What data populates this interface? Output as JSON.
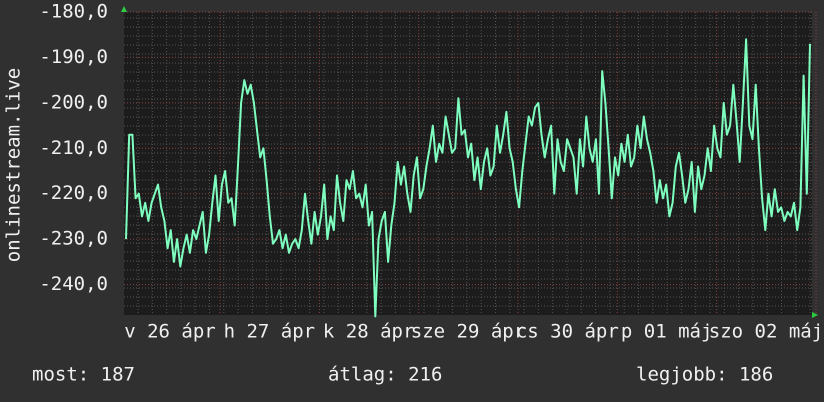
{
  "chart_data": {
    "type": "line",
    "y_label": "onlinestream.live",
    "x_labels": [
      "v 26 ápr",
      "h 27 ápr",
      "k 28 ápr",
      "sze 29 ápr",
      "cs 30 ápr",
      "p 01 máj",
      "szo 02 máj"
    ],
    "ylim": [
      -246.7,
      -180
    ],
    "yticks": [
      {
        "value": -180,
        "label": "-180,0"
      },
      {
        "value": -190,
        "label": "-190,0"
      },
      {
        "value": -200,
        "label": "-200,0"
      },
      {
        "value": -210,
        "label": "-210,0"
      },
      {
        "value": -220,
        "label": "-220,0"
      },
      {
        "value": -230,
        "label": "-230,0"
      },
      {
        "value": -240,
        "label": "-240,0"
      }
    ],
    "grid": true,
    "series": [
      {
        "color": "#7fffbf",
        "values": [
          -230,
          -207,
          -207,
          -221,
          -220,
          -225,
          -222,
          -226,
          -222,
          -220,
          -218,
          -223,
          -226,
          -232,
          -228,
          -235,
          -230,
          -236,
          -232,
          -229,
          -233,
          -228,
          -230,
          -227,
          -224,
          -233,
          -229,
          -222,
          -216,
          -226,
          -218,
          -215,
          -222,
          -221,
          -227,
          -214,
          -200,
          -195,
          -198,
          -196,
          -200,
          -206,
          -212,
          -210,
          -217,
          -225,
          -231,
          -230,
          -228,
          -232,
          -229,
          -233,
          -231,
          -230,
          -232,
          -228,
          -220,
          -226,
          -231,
          -224,
          -229,
          -225,
          -218,
          -230,
          -225,
          -228,
          -216,
          -222,
          -226,
          -217,
          -219,
          -215,
          -221,
          -220,
          -223,
          -218,
          -227,
          -224,
          -247,
          -230,
          -226,
          -224,
          -235,
          -227,
          -222,
          -213,
          -218,
          -214,
          -220,
          -224,
          -216,
          -212,
          -221,
          -219,
          -214,
          -210,
          -205,
          -213,
          -209,
          -211,
          -203,
          -207,
          -211,
          -210,
          -199,
          -207,
          -206,
          -212,
          -209,
          -217,
          -212,
          -219,
          -213,
          -210,
          -216,
          -214,
          -205,
          -211,
          -207,
          -202,
          -210,
          -213,
          -219,
          -223,
          -215,
          -209,
          -203,
          -205,
          -201,
          -200,
          -207,
          -212,
          -208,
          -205,
          -220,
          -208,
          -213,
          -215,
          -208,
          -210,
          -212,
          -220,
          -208,
          -214,
          -203,
          -210,
          -213,
          -208,
          -220,
          -193,
          -200,
          -210,
          -221,
          -212,
          -216,
          -209,
          -213,
          -207,
          -214,
          -212,
          -205,
          -210,
          -203,
          -208,
          -211,
          -215,
          -222,
          -217,
          -221,
          -218,
          -225,
          -222,
          -214,
          -211,
          -216,
          -222,
          -219,
          -213,
          -224,
          -214,
          -219,
          -216,
          -210,
          -215,
          -205,
          -210,
          -212,
          -200,
          -207,
          -205,
          -196,
          -204,
          -213,
          -200,
          -186,
          -205,
          -208,
          -196,
          -210,
          -221,
          -228,
          -220,
          -225,
          -219,
          -224,
          -223,
          -226,
          -224,
          -225,
          -222,
          -228,
          -223,
          -194,
          -220,
          -187
        ]
      }
    ],
    "footer": [
      "most: 187",
      "átlag: 216",
      "legjobb: 186"
    ]
  }
}
